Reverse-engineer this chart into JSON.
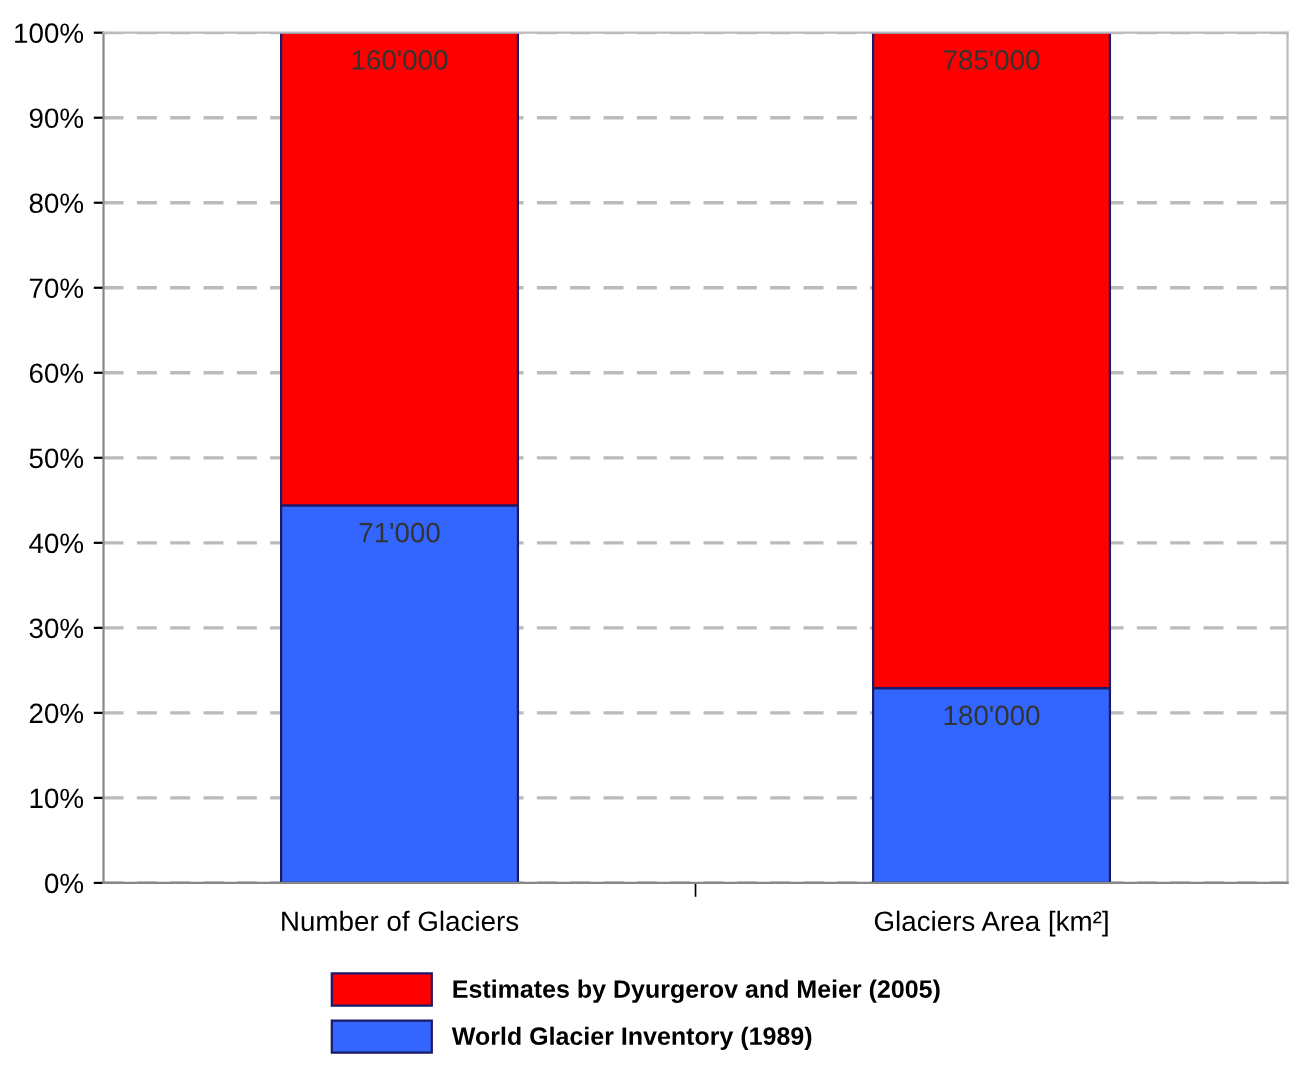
{
  "chart_data": {
    "type": "bar",
    "stacked": true,
    "categories": [
      "Number of Glaciers",
      "Glaciers Area [km²]"
    ],
    "series": [
      {
        "name": "World Glacier Inventory (1989)",
        "color": "#3366ff",
        "values": [
          44.4,
          22.9
        ]
      },
      {
        "name": "Estimates by Dyurgerov and Meier (2005)",
        "color": "#ff0000",
        "values": [
          55.6,
          77.1
        ]
      }
    ],
    "annotations": [
      {
        "text": "71'000",
        "x": "Number of Glaciers",
        "y": 44.4
      },
      {
        "text": "180'000",
        "x": "Glaciers Area [km²]",
        "y": 22.9
      },
      {
        "text": "160'000",
        "x": "Number of Glaciers",
        "y": 100
      },
      {
        "text": "785'000",
        "x": "Glaciers Area [km²]",
        "y": 100
      }
    ],
    "ylim": [
      0,
      100
    ],
    "yticks": [
      {
        "value": 0,
        "label": "0%"
      },
      {
        "value": 10,
        "label": "10%"
      },
      {
        "value": 20,
        "label": "20%"
      },
      {
        "value": 30,
        "label": "30%"
      },
      {
        "value": 40,
        "label": "40%"
      },
      {
        "value": 50,
        "label": "50%"
      },
      {
        "value": 60,
        "label": "60%"
      },
      {
        "value": 70,
        "label": "70%"
      },
      {
        "value": 80,
        "label": "80%"
      },
      {
        "value": 90,
        "label": "90%"
      },
      {
        "value": 100,
        "label": "100%"
      }
    ],
    "grid": "y",
    "line_style": "dashed",
    "legend": "bottom"
  }
}
